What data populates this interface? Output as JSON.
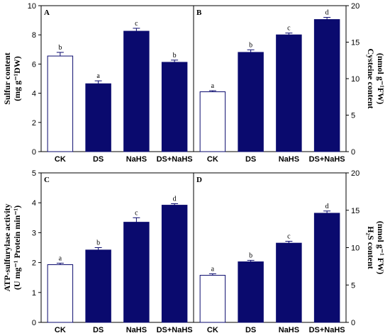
{
  "style": {
    "filled_color": "#0a0a6e",
    "open_color": "#ffffff",
    "edge_color": "#0a0a6e"
  },
  "chart_data": [
    {
      "panel": "A",
      "type": "bar",
      "categories": [
        "CK",
        "DS",
        "NaHS",
        "DS+NaHS"
      ],
      "values": [
        6.55,
        4.65,
        8.25,
        6.12
      ],
      "errors": [
        0.25,
        0.2,
        0.2,
        0.15
      ],
      "letters": [
        "b",
        "a",
        "c",
        "b"
      ],
      "ylim": [
        0,
        10
      ],
      "yticks": [
        "0",
        "2",
        "4",
        "6",
        "8",
        "10"
      ],
      "ylabel_lines": [
        "Sulfur content",
        "(mg g⁻¹DW)"
      ],
      "y_axis_side": "left",
      "open_bars": [
        true,
        false,
        false,
        false
      ]
    },
    {
      "panel": "B",
      "type": "bar",
      "categories": [
        "CK",
        "DS",
        "NaHS",
        "DS+NaHS"
      ],
      "values": [
        8.2,
        13.6,
        16.0,
        18.1
      ],
      "errors": [
        0.15,
        0.35,
        0.25,
        0.3
      ],
      "letters": [
        "a",
        "b",
        "c",
        "d"
      ],
      "ylim": [
        0,
        20
      ],
      "yticks": [
        "0",
        "5",
        "10",
        "15",
        "20"
      ],
      "ylabel_lines": [
        "Cysteine content",
        "(nmol g⁻¹FW)"
      ],
      "y_axis_side": "right",
      "open_bars": [
        true,
        false,
        false,
        false
      ]
    },
    {
      "panel": "C",
      "type": "bar",
      "categories": [
        "CK",
        "DS",
        "NaHS",
        "DS+NaHS"
      ],
      "values": [
        1.93,
        2.42,
        3.35,
        3.92
      ],
      "errors": [
        0.05,
        0.08,
        0.15,
        0.05
      ],
      "letters": [
        "a",
        "b",
        "c",
        "d"
      ],
      "ylim": [
        0,
        5
      ],
      "yticks": [
        "0",
        "1",
        "2",
        "3",
        "4",
        "5"
      ],
      "ylabel_lines": [
        "ATP-sulfurylase activity",
        "(U mg⁻¹ Protein min⁻¹)"
      ],
      "y_axis_side": "left",
      "open_bars": [
        true,
        false,
        false,
        false
      ]
    },
    {
      "panel": "D",
      "type": "bar",
      "categories": [
        "CK",
        "DS",
        "NaHS",
        "DS+NaHS"
      ],
      "values": [
        6.3,
        8.1,
        10.6,
        14.6
      ],
      "errors": [
        0.2,
        0.2,
        0.25,
        0.3
      ],
      "letters": [
        "a",
        "b",
        "c",
        "d"
      ],
      "ylim": [
        0,
        20
      ],
      "yticks": [
        "0",
        "5",
        "10",
        "15",
        "20"
      ],
      "ylabel_lines": [
        "H₂S content",
        "(nmol g⁻¹ FW)"
      ],
      "y_axis_side": "right",
      "open_bars": [
        true,
        false,
        false,
        false
      ]
    }
  ]
}
